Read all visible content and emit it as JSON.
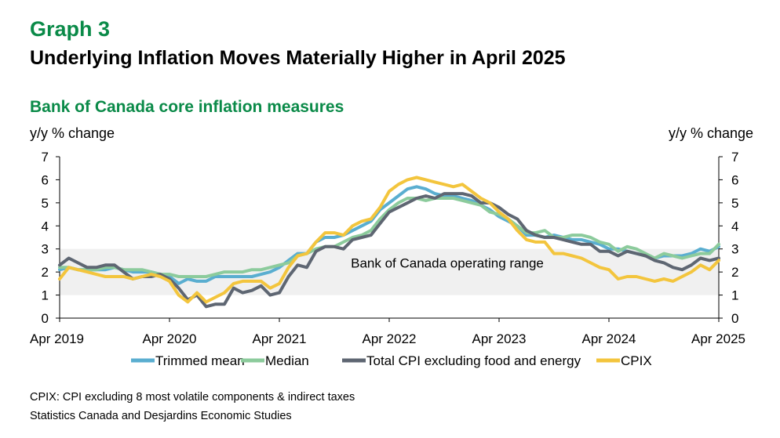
{
  "graph_number": "Graph 3",
  "title": "Underlying Inflation Moves Materially Higher in April 2025",
  "subtitle": "Bank of Canada core inflation measures",
  "footnote": "CPIX: CPI excluding 8 most volatile components & indirect taxes",
  "source": "Statistics Canada and Desjardins Economic Studies",
  "chart_data": {
    "type": "line",
    "ylabel_left": "y/y % change",
    "ylabel_right": "y/y % change",
    "ylim": [
      0,
      7
    ],
    "yticks": [
      "0",
      "1",
      "2",
      "3",
      "4",
      "5",
      "6",
      "7"
    ],
    "xlim": [
      0,
      72
    ],
    "xticks": [
      {
        "pos": 0,
        "label": "Apr 2019"
      },
      {
        "pos": 12,
        "label": "Apr 2020"
      },
      {
        "pos": 24,
        "label": "Apr 2021"
      },
      {
        "pos": 36,
        "label": "Apr 2022"
      },
      {
        "pos": 48,
        "label": "Apr 2023"
      },
      {
        "pos": 60,
        "label": "Apr 2024"
      },
      {
        "pos": 72,
        "label": "Apr 2025"
      }
    ],
    "band": {
      "from": 1,
      "to": 3,
      "label": "Bank of Canada operating range",
      "color": "#f0f0f0"
    },
    "series": [
      {
        "name": "Trimmed mean",
        "color": "#5aaed0",
        "values": [
          2.1,
          2.2,
          2.1,
          2.1,
          2.1,
          2.1,
          2.2,
          2.1,
          2.0,
          2.0,
          2.0,
          1.9,
          1.8,
          1.5,
          1.7,
          1.6,
          1.6,
          1.8,
          1.8,
          1.8,
          1.8,
          1.8,
          1.9,
          2.0,
          2.2,
          2.5,
          2.8,
          2.8,
          3.3,
          3.5,
          3.5,
          3.6,
          3.8,
          4.0,
          4.2,
          4.7,
          5.0,
          5.3,
          5.6,
          5.7,
          5.6,
          5.4,
          5.3,
          5.3,
          5.2,
          5.1,
          4.9,
          4.7,
          4.4,
          4.2,
          4.0,
          3.6,
          3.6,
          3.5,
          3.6,
          3.5,
          3.4,
          3.4,
          3.3,
          3.2,
          3.0,
          3.0,
          2.9,
          2.8,
          2.7,
          2.6,
          2.7,
          2.7,
          2.7,
          2.8,
          3.0,
          2.9,
          3.1
        ]
      },
      {
        "name": "Median",
        "color": "#8ccb9c",
        "values": [
          2.2,
          2.2,
          2.1,
          2.1,
          2.1,
          2.2,
          2.2,
          2.1,
          2.1,
          2.1,
          2.0,
          1.9,
          1.9,
          1.8,
          1.8,
          1.8,
          1.8,
          1.9,
          2.0,
          2.0,
          2.0,
          2.1,
          2.1,
          2.2,
          2.3,
          2.4,
          2.7,
          2.8,
          3.0,
          3.1,
          3.1,
          3.3,
          3.5,
          3.6,
          3.8,
          4.3,
          4.7,
          5.0,
          5.2,
          5.2,
          5.1,
          5.2,
          5.2,
          5.2,
          5.1,
          5.0,
          4.9,
          4.6,
          4.5,
          4.3,
          4.0,
          3.7,
          3.7,
          3.8,
          3.5,
          3.5,
          3.6,
          3.6,
          3.5,
          3.3,
          3.2,
          2.9,
          3.1,
          3.0,
          2.8,
          2.6,
          2.8,
          2.7,
          2.6,
          2.7,
          2.8,
          2.8,
          3.2
        ]
      },
      {
        "name": "Total CPI excluding food and energy",
        "color": "#5e6672",
        "values": [
          2.3,
          2.6,
          2.4,
          2.2,
          2.2,
          2.3,
          2.3,
          2.0,
          1.7,
          1.8,
          1.8,
          1.9,
          1.7,
          1.3,
          0.8,
          1.0,
          0.5,
          0.6,
          0.6,
          1.3,
          1.1,
          1.2,
          1.4,
          1.0,
          1.1,
          1.8,
          2.3,
          2.2,
          2.9,
          3.1,
          3.1,
          3.0,
          3.4,
          3.5,
          3.6,
          4.1,
          4.6,
          4.8,
          5.0,
          5.2,
          5.3,
          5.2,
          5.4,
          5.4,
          5.4,
          5.3,
          5.0,
          5.0,
          4.8,
          4.5,
          4.3,
          3.8,
          3.6,
          3.5,
          3.5,
          3.4,
          3.3,
          3.2,
          3.2,
          2.9,
          2.9,
          2.7,
          2.9,
          2.8,
          2.7,
          2.5,
          2.4,
          2.2,
          2.1,
          2.3,
          2.6,
          2.5,
          2.6
        ]
      },
      {
        "name": "CPIX",
        "color": "#f3c53d",
        "values": [
          1.7,
          2.2,
          2.1,
          2.0,
          1.9,
          1.8,
          1.8,
          1.8,
          1.7,
          1.8,
          1.9,
          1.8,
          1.6,
          1.0,
          0.7,
          1.1,
          0.7,
          0.9,
          1.1,
          1.5,
          1.6,
          1.6,
          1.6,
          1.3,
          1.5,
          2.2,
          2.7,
          2.8,
          3.3,
          3.7,
          3.7,
          3.6,
          4.0,
          4.2,
          4.3,
          4.8,
          5.5,
          5.8,
          6.0,
          6.1,
          6.0,
          5.9,
          5.8,
          5.7,
          5.8,
          5.5,
          5.2,
          5.0,
          4.6,
          4.3,
          3.8,
          3.4,
          3.3,
          3.3,
          2.8,
          2.8,
          2.7,
          2.6,
          2.4,
          2.2,
          2.1,
          1.7,
          1.8,
          1.8,
          1.7,
          1.6,
          1.7,
          1.6,
          1.8,
          2.0,
          2.3,
          2.1,
          2.5
        ]
      }
    ],
    "legend_position": "bottom"
  }
}
